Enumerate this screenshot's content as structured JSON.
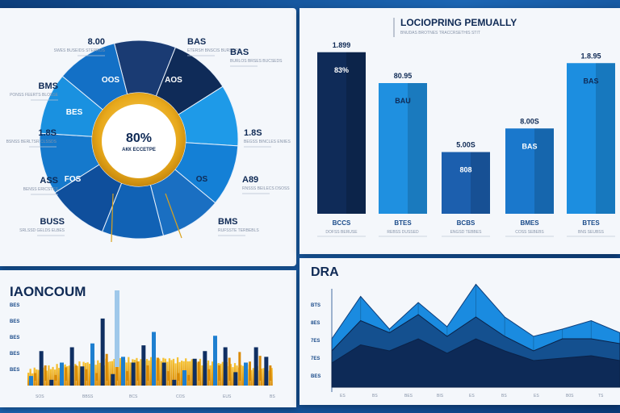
{
  "chart_data": [
    {
      "type": "pie",
      "title": "",
      "center_value": "80%",
      "center_label": "АКК ЕССЕТРЕ",
      "slice_labels": [
        "8.00",
        "BAS",
        "BMS",
        "BAS",
        "1.8S",
        "1.8S",
        "ASS",
        "A89",
        "BUSS",
        "BMS"
      ],
      "slice_values": [
        10,
        10,
        10,
        10,
        10,
        10,
        10,
        10,
        10,
        10
      ],
      "slice_inner_labels": [
        "OOS",
        "AOS",
        "BES",
        "OS",
        "FOS"
      ],
      "callouts": [
        {
          "value": "8.00",
          "caption": "SWES BUSEIDS STEPROS"
        },
        {
          "value": "BAS",
          "caption": "ETERSH BNSCIS BURSDRS"
        },
        {
          "value": "BMS",
          "caption": "PONSS FEERTS BLOSSE"
        },
        {
          "value": "BAS",
          "caption": "BURLOS BRSES BUCSEDS"
        },
        {
          "value": "1.8S",
          "caption": "BSNSS BERLTSR CLSSDS"
        },
        {
          "value": "1.8S",
          "caption": "BEGSS BINCLES ENIIES"
        },
        {
          "value": "ASS",
          "caption": "BENSS ERICSTES"
        },
        {
          "value": "A89",
          "caption": "RNSSS BEILECS DSOSS"
        },
        {
          "value": "BUSS",
          "caption": "SRLSSD GELDS ELBES"
        },
        {
          "value": "BMS",
          "caption": "RUFSSTE TERBEBLS"
        }
      ]
    },
    {
      "type": "bar",
      "title": "LOCIOPRING PEMUALLY",
      "subtitle": "BNUDAS BROTNES TRACCRSETHIS STIT",
      "categories": [
        "BCCS",
        "BTES",
        "BCBS",
        "BMES",
        "BTES"
      ],
      "category_captions": [
        "DOFSS BERUSE",
        "REBSS DUSSED",
        "ENGSD TEBBES",
        "COSS SEBEBS",
        "BNS SEUBSS"
      ],
      "values": [
        89,
        72,
        34,
        47,
        83
      ],
      "value_labels": [
        "1.899",
        "80.95",
        "5.00S",
        "8.00S",
        "1.8.95"
      ],
      "inner_labels": [
        "83%",
        "BAU",
        "808",
        "BAS",
        "BAS"
      ],
      "ylim": [
        0,
        100
      ],
      "colors": [
        "#0f2b58",
        "#1f90e0",
        "#1c5fae",
        "#1a78cc",
        "#1c8ee0"
      ]
    },
    {
      "type": "bar",
      "title": "IAONCOUM",
      "ytick_labels": [
        "BES",
        "BES",
        "BES",
        "BES",
        "BES"
      ],
      "series": [
        {
          "name": "spikes",
          "values": [
            4,
            8,
            3,
            7,
            8,
            6,
            4,
            14,
            11,
            5,
            10,
            8,
            12,
            5,
            4,
            3,
            10,
            6,
            8,
            12,
            15,
            10,
            13,
            8
          ]
        },
        {
          "name": "bars",
          "values": [
            5,
            18,
            3,
            12,
            20,
            10,
            22,
            35,
            6,
            15,
            12,
            21,
            28,
            12,
            3,
            8,
            14,
            18,
            26,
            20,
            7,
            12,
            20,
            15
          ]
        }
      ],
      "xtick_labels": [
        "SOS",
        "BBSS",
        "BCS",
        "COS",
        "EUS",
        "BS"
      ]
    },
    {
      "type": "area",
      "title": "DRA",
      "x": [
        0,
        1,
        2,
        3,
        4,
        5,
        6,
        7,
        8,
        9,
        10
      ],
      "series": [
        {
          "name": "front",
          "values": [
            40,
            75,
            48,
            70,
            50,
            85,
            58,
            42,
            48,
            55,
            45
          ]
        },
        {
          "name": "mid",
          "values": [
            30,
            55,
            45,
            60,
            42,
            58,
            42,
            30,
            40,
            40,
            36
          ]
        },
        {
          "name": "back",
          "values": [
            20,
            35,
            30,
            40,
            28,
            40,
            30,
            22,
            24,
            26,
            22
          ]
        }
      ],
      "ytick_labels": [
        "BTS",
        "8ES",
        "7ES",
        "7ES",
        "BES"
      ],
      "xtick_labels": [
        "ES",
        "BS",
        "BES",
        "BIS",
        "ES",
        "BS",
        "ES",
        "B0S",
        "TS"
      ],
      "ylim": [
        0,
        100
      ]
    }
  ]
}
